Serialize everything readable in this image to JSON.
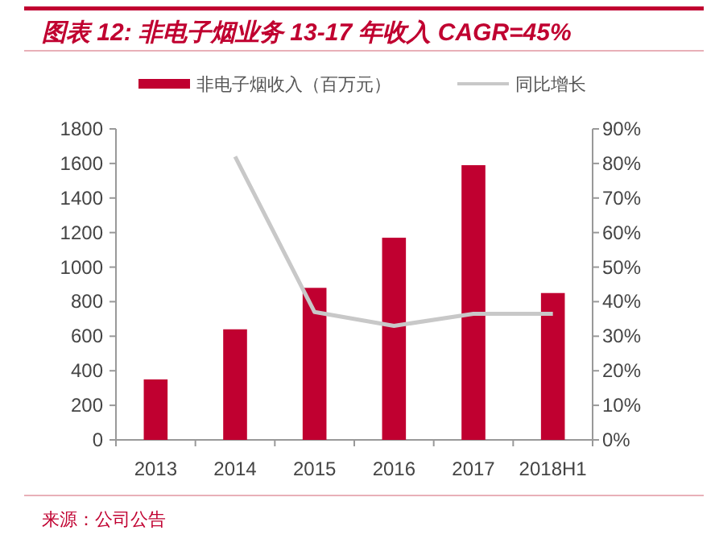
{
  "chart_data": {
    "type": "bar",
    "title": "图表 12:  非电子烟业务 13-17 年收入 CAGR=45%",
    "categories": [
      "2013",
      "2014",
      "2015",
      "2016",
      "2017",
      "2018H1"
    ],
    "series": [
      {
        "name": "非电子烟收入（百万元）",
        "color": "#c00030",
        "values": [
          350,
          640,
          880,
          1170,
          1590,
          850
        ]
      },
      {
        "name": "同比增长",
        "type": "line",
        "axis": "y2",
        "color": "#c8c8c8",
        "values": [
          null,
          82,
          37,
          33,
          36.5,
          36.5
        ]
      }
    ],
    "ylim": [
      0,
      1800
    ],
    "yticks": [
      0,
      200,
      400,
      600,
      800,
      1000,
      1200,
      1400,
      1600,
      1800
    ],
    "y2lim": [
      0,
      90
    ],
    "y2ticks": [
      {
        "value": 0,
        "label": "0%"
      },
      {
        "value": 10,
        "label": "10%"
      },
      {
        "value": 20,
        "label": "20%"
      },
      {
        "value": 30,
        "label": "30%"
      },
      {
        "value": 40,
        "label": "40%"
      },
      {
        "value": 50,
        "label": "50%"
      },
      {
        "value": 60,
        "label": "60%"
      },
      {
        "value": 70,
        "label": "70%"
      },
      {
        "value": 80,
        "label": "80%"
      },
      {
        "value": 90,
        "label": "90%"
      }
    ],
    "legend": "top",
    "annotations": [
      "来源：公司公告"
    ]
  }
}
